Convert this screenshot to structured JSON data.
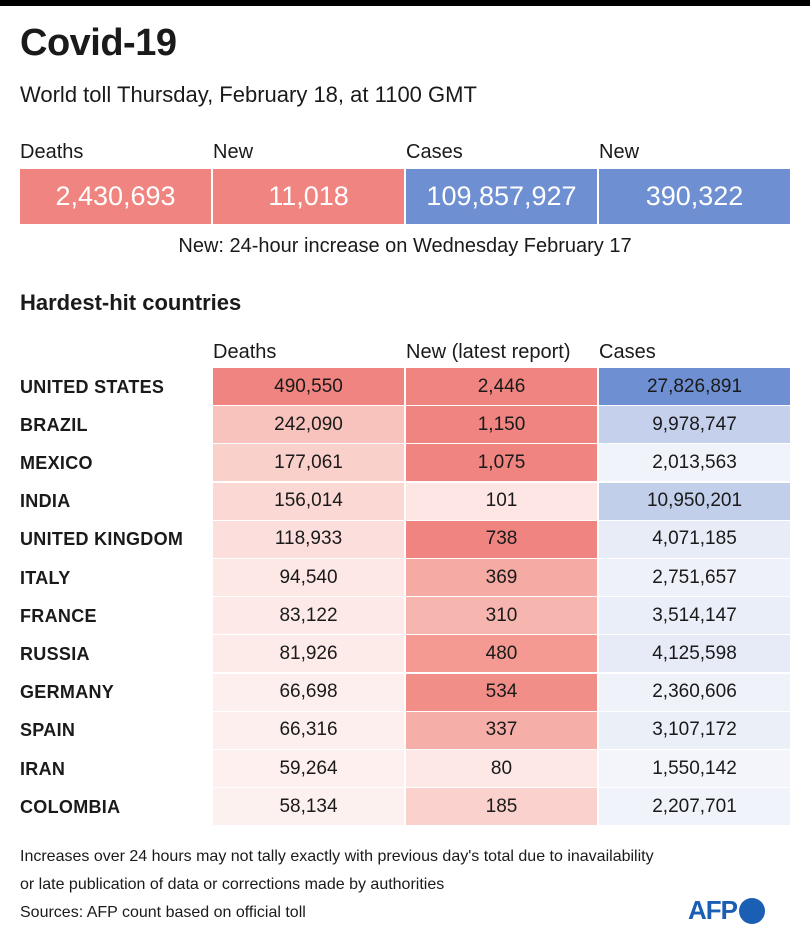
{
  "header": {
    "title": "Covid-19",
    "subtitle": "World toll Thursday, February 18, at 1100 GMT"
  },
  "stats": [
    {
      "label": "Deaths",
      "value": "2,430,693",
      "color": "#f08480"
    },
    {
      "label": "New",
      "value": "11,018",
      "color": "#f08480"
    },
    {
      "label": "Cases",
      "value": "109,857,927",
      "color": "#6e8fd1"
    },
    {
      "label": "New",
      "value": "390,322",
      "color": "#6e8fd1"
    }
  ],
  "note": "New: 24-hour increase on Wednesday February 17",
  "table": {
    "title": "Hardest-hit countries",
    "headers": [
      "Deaths",
      "New (latest report)",
      "Cases"
    ],
    "rows": [
      {
        "country": "UNITED STATES",
        "deaths": "490,550",
        "new": "2,446",
        "cases": "27,826,891"
      },
      {
        "country": "BRAZIL",
        "deaths": "242,090",
        "new": "1,150",
        "cases": "9,978,747"
      },
      {
        "country": "MEXICO",
        "deaths": "177,061",
        "new": "1,075",
        "cases": "2,013,563"
      },
      {
        "country": "INDIA",
        "deaths": "156,014",
        "new": "101",
        "cases": "10,950,201"
      },
      {
        "country": "UNITED KINGDOM",
        "deaths": "118,933",
        "new": "738",
        "cases": "4,071,185"
      },
      {
        "country": "ITALY",
        "deaths": "94,540",
        "new": "369",
        "cases": "2,751,657"
      },
      {
        "country": "FRANCE",
        "deaths": "83,122",
        "new": "310",
        "cases": "3,514,147"
      },
      {
        "country": "RUSSIA",
        "deaths": "81,926",
        "new": "480",
        "cases": "4,125,598"
      },
      {
        "country": "GERMANY",
        "deaths": "66,698",
        "new": "534",
        "cases": "2,360,606"
      },
      {
        "country": "SPAIN",
        "deaths": "66,316",
        "new": "337",
        "cases": "3,107,172"
      },
      {
        "country": "IRAN",
        "deaths": "59,264",
        "new": "80",
        "cases": "1,550,142"
      },
      {
        "country": "COLOMBIA",
        "deaths": "58,134",
        "new": "185",
        "cases": "2,207,701"
      }
    ],
    "colors": {
      "deaths": [
        "#f08480",
        "#f8c2bd",
        "#fad0cb",
        "#fbd8d4",
        "#fcdfdc",
        "#fde8e6",
        "#fdeae8",
        "#fdebe9",
        "#fdefed",
        "#fdefed",
        "#fdf0ee",
        "#fdf1ef"
      ],
      "new": [
        "#f08480",
        "#f08480",
        "#f08480",
        "#fde6e4",
        "#f08480",
        "#f6aaa4",
        "#f7b5af",
        "#f49a93",
        "#f28e88",
        "#f6aea8",
        "#fde8e6",
        "#fad1cc"
      ],
      "cases": [
        "#6e8fd1",
        "#c5d1ec",
        "#f1f3fa",
        "#c2cfeb",
        "#e7ecf7",
        "#eef1f9",
        "#eaeef8",
        "#e7ebf7",
        "#eff2f9",
        "#ebeff8",
        "#f3f5fb",
        "#f0f3fa"
      ]
    }
  },
  "footnotes": [
    "Increases over 24 hours may not tally exactly with previous day's total due to inavailability",
    "or late publication of data or corrections made by authorities",
    "Sources: AFP count based on official toll"
  ],
  "logo": {
    "text": "AFP"
  }
}
